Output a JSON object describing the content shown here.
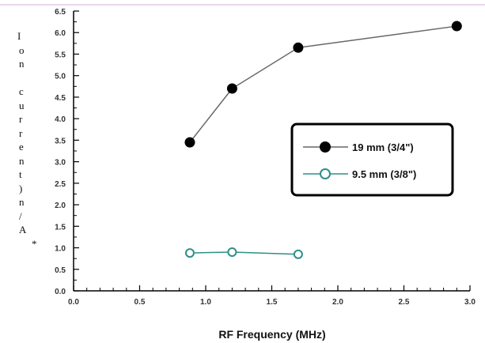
{
  "chart_data": {
    "type": "line",
    "ylabel": "Ion current)n/A*",
    "xlabel": "RF Frequency (MHz)",
    "xlim": [
      0.0,
      3.0
    ],
    "ylim": [
      0.0,
      6.5
    ],
    "xticks": [
      "0.0",
      "0.5",
      "1.0",
      "1.5",
      "2.0",
      "2.5",
      "3.0"
    ],
    "yticks": [
      "0.0",
      "0.5",
      "1.0",
      "1.5",
      "2.0",
      "2.5",
      "3.0",
      "3.5",
      "4.0",
      "4.5",
      "5.0",
      "5.5",
      "6.0",
      "6.5"
    ],
    "grid": false,
    "legend_position": "right",
    "series": [
      {
        "name": "19 mm (3/4\")",
        "marker": "filled-circle",
        "color": "#000000",
        "line_color": "#666666",
        "x": [
          0.88,
          1.2,
          1.7,
          2.9
        ],
        "y": [
          3.45,
          4.7,
          5.65,
          6.15
        ]
      },
      {
        "name": "9.5 mm (3/8\")",
        "marker": "open-circle",
        "color": "#2e8f8a",
        "line_color": "#2e8f8a",
        "x": [
          0.88,
          1.2,
          1.7
        ],
        "y": [
          0.88,
          0.9,
          0.85
        ]
      }
    ]
  }
}
